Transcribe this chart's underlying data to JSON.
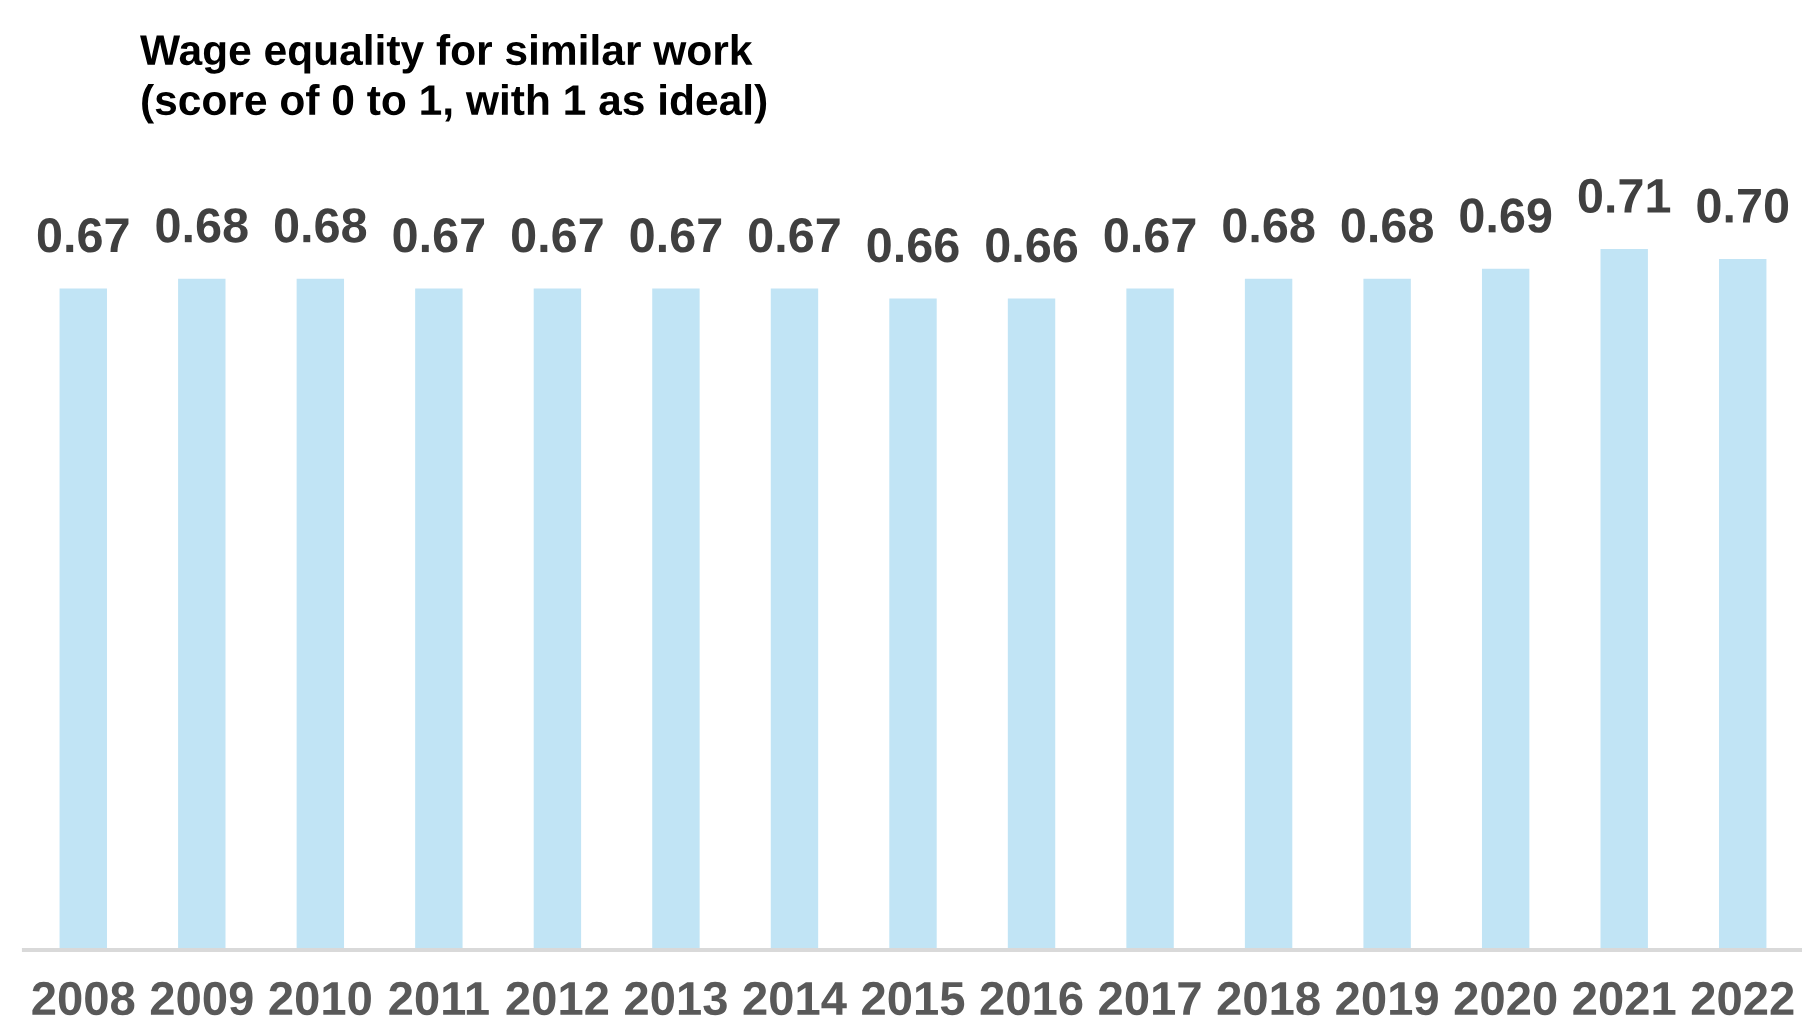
{
  "chart_data": {
    "type": "bar",
    "title": "Wage equality for similar work",
    "subtitle": "(score of 0 to 1, with 1 as ideal)",
    "categories": [
      "2008",
      "2009",
      "2010",
      "2011",
      "2012",
      "2013",
      "2014",
      "2015",
      "2016",
      "2017",
      "2018",
      "2019",
      "2020",
      "2021",
      "2022"
    ],
    "values": [
      0.67,
      0.68,
      0.68,
      0.67,
      0.67,
      0.67,
      0.67,
      0.66,
      0.66,
      0.67,
      0.68,
      0.68,
      0.69,
      0.71,
      0.7
    ],
    "value_labels": [
      "0.67",
      "0.68",
      "0.68",
      "0.67",
      "0.67",
      "0.67",
      "0.67",
      "0.66",
      "0.66",
      "0.67",
      "0.68",
      "0.68",
      "0.69",
      "0.71",
      "0.70"
    ],
    "color": "#c1e4f5",
    "tick_labels": "x"
  }
}
